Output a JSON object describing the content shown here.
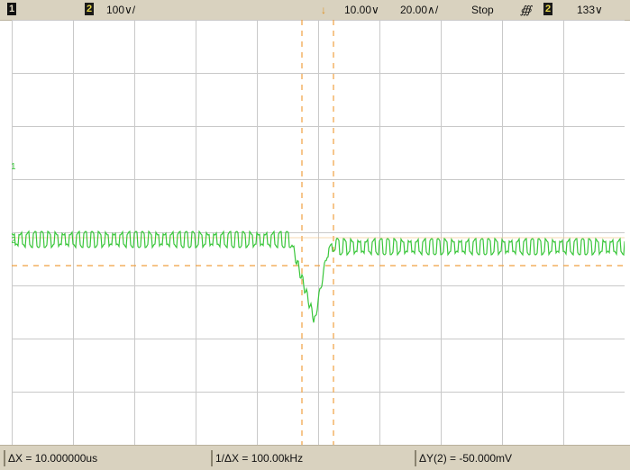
{
  "topbar": {
    "ch1_badge": "1",
    "ch2_badge": "2",
    "ch2_scale": "100∨/",
    "trigger_marker": "↓",
    "time_delay": "10.00∨",
    "time_scale": "20.00∧/",
    "run_state": "Stop",
    "trigger_slope": "∰",
    "trigger_ch_badge": "2",
    "trigger_level": "133∨"
  },
  "bottombar": {
    "delta_x": "ΔX = 10.000000us",
    "inv_delta_x": "1/ΔX = 100.00kHz",
    "delta_y": "ΔY(2) = -50.000mV"
  },
  "colors": {
    "trace": "#39c63a",
    "cursor": "#f0a040",
    "grid": "#c9c9c9",
    "bar_bg": "#d9d2bf"
  },
  "icons": {
    "channel_badge": "channel-badge-icon",
    "trigger_marker": "trigger-position-icon",
    "slope": "rising-edge-icon"
  }
}
